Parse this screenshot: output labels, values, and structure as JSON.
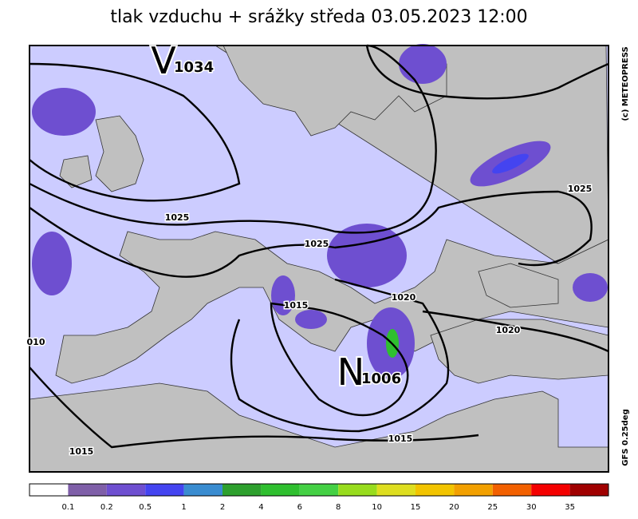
{
  "title": "tlak vzduchu + srážky  středa 03.05.2023 12:00",
  "credit": "(c) METEOPRESS",
  "model": "GFS 0.25deg",
  "centers": [
    {
      "letter": "V",
      "value": "1034"
    },
    {
      "letter": "N",
      "value": "1006"
    }
  ],
  "isobar_labels": [
    "1025",
    "1025",
    "1015",
    "1020",
    "1020",
    "1025",
    "1015",
    "1015",
    "010"
  ],
  "colorbar": {
    "colors": [
      "#ffffff",
      "#7f5fa8",
      "#6e4fd0",
      "#4444f0",
      "#3a8cd0",
      "#2ea02e",
      "#2fbf2f",
      "#44d044",
      "#98dc1e",
      "#dede20",
      "#f2c400",
      "#f2a000",
      "#f26000",
      "#f40000",
      "#a00000"
    ],
    "labels": [
      "0.1",
      "0.2",
      "0.5",
      "1",
      "2",
      "4",
      "6",
      "8",
      "10",
      "15",
      "20",
      "25",
      "30",
      "35"
    ]
  }
}
